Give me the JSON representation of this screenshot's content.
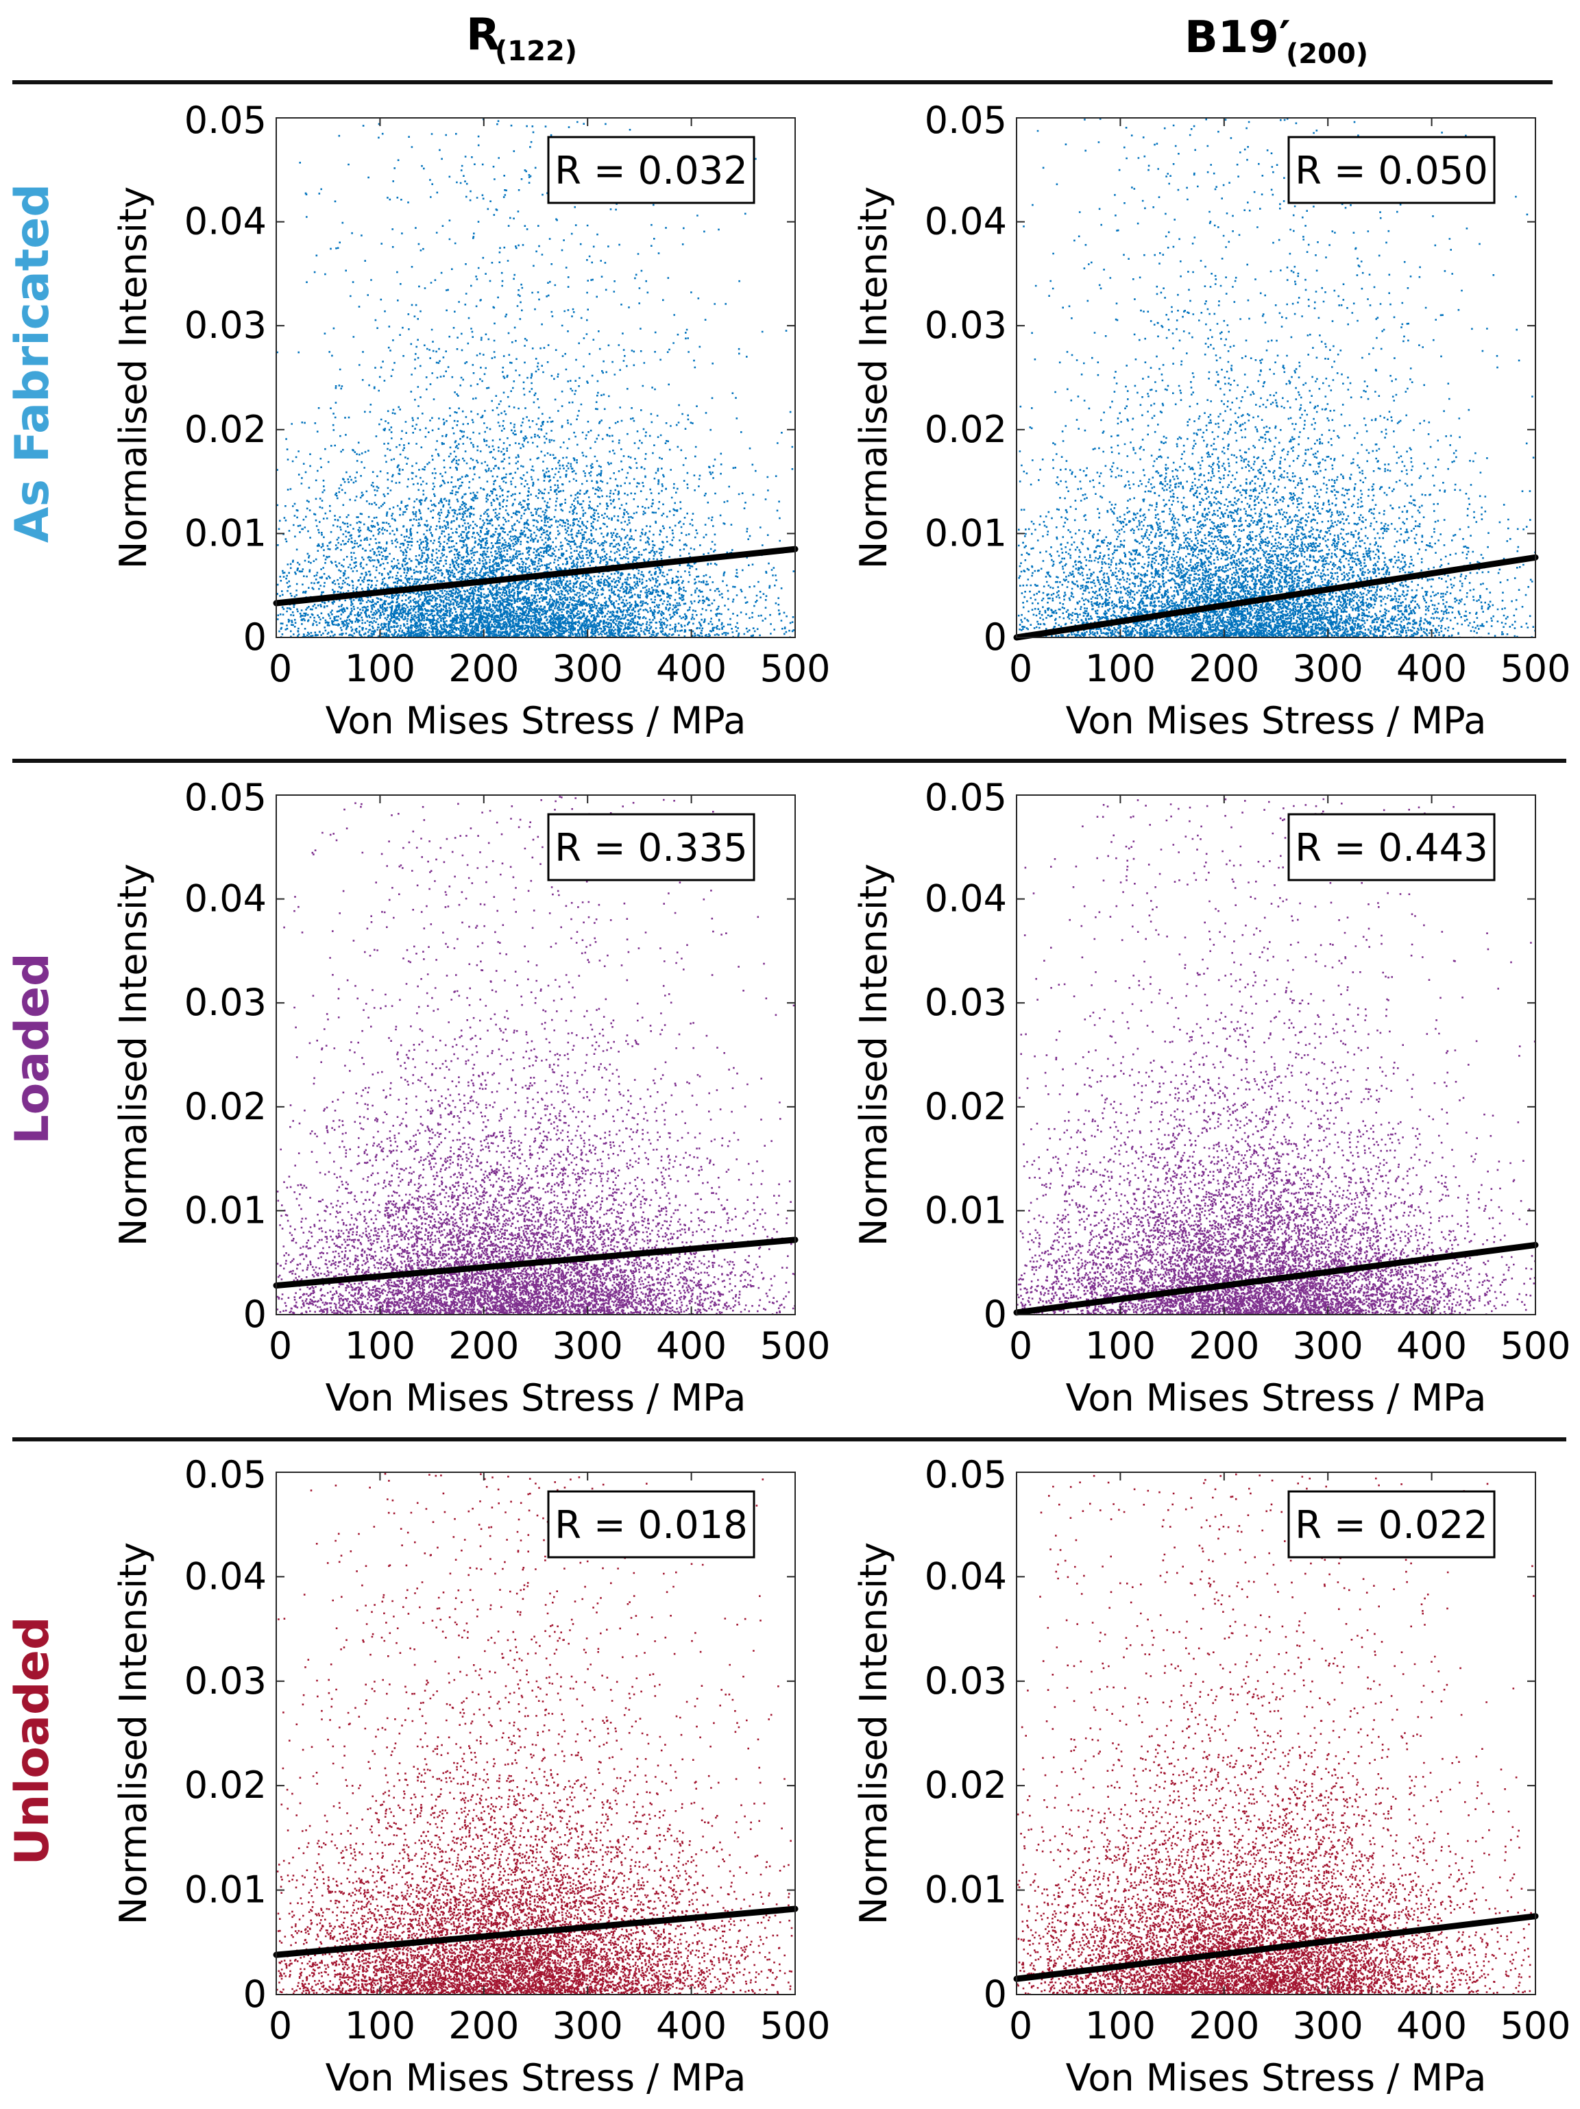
{
  "column_titles": [
    {
      "main": "R",
      "sub": "(122)"
    },
    {
      "main": "B19′",
      "sub": "(200)"
    }
  ],
  "rows": [
    {
      "label": "As Fabricated",
      "color": "#0072BD"
    },
    {
      "label": "Loaded",
      "color": "#7E2F8E"
    },
    {
      "label": "Unloaded",
      "color": "#A2142F"
    }
  ],
  "chart_data": [
    {
      "type": "scatter",
      "row": 0,
      "col": 0,
      "color": "#0072BD",
      "xlabel": "Von Mises Stress / MPa",
      "ylabel": "Normalised Intensity",
      "xlim": [
        0,
        500
      ],
      "ylim": [
        0,
        0.05
      ],
      "xticks": [
        0,
        100,
        200,
        300,
        400,
        500
      ],
      "yticks": [
        0,
        0.01,
        0.02,
        0.03,
        0.04,
        0.05
      ],
      "r_label": "R = 0.032",
      "fit_line": [
        [
          0,
          0.0033
        ],
        [
          500,
          0.0085
        ]
      ]
    },
    {
      "type": "scatter",
      "row": 0,
      "col": 1,
      "color": "#0072BD",
      "xlabel": "Von Mises Stress / MPa",
      "ylabel": "Normalised Intensity",
      "xlim": [
        0,
        500
      ],
      "ylim": [
        0,
        0.05
      ],
      "xticks": [
        0,
        100,
        200,
        300,
        400,
        500
      ],
      "yticks": [
        0,
        0.01,
        0.02,
        0.03,
        0.04,
        0.05
      ],
      "r_label": "R = 0.050",
      "fit_line": [
        [
          0,
          0.0
        ],
        [
          500,
          0.0077
        ]
      ]
    },
    {
      "type": "scatter",
      "row": 1,
      "col": 0,
      "color": "#7E2F8E",
      "xlabel": "Von Mises Stress / MPa",
      "ylabel": "Normalised Intensity",
      "xlim": [
        0,
        500
      ],
      "ylim": [
        0,
        0.05
      ],
      "xticks": [
        0,
        100,
        200,
        300,
        400,
        500
      ],
      "yticks": [
        0,
        0.01,
        0.02,
        0.03,
        0.04,
        0.05
      ],
      "r_label": "R = 0.335",
      "fit_line": [
        [
          0,
          0.0028
        ],
        [
          500,
          0.0072
        ]
      ]
    },
    {
      "type": "scatter",
      "row": 1,
      "col": 1,
      "color": "#7E2F8E",
      "xlabel": "Von Mises Stress / MPa",
      "ylabel": "Normalised Intensity",
      "xlim": [
        0,
        500
      ],
      "ylim": [
        0,
        0.05
      ],
      "xticks": [
        0,
        100,
        200,
        300,
        400,
        500
      ],
      "yticks": [
        0,
        0.01,
        0.02,
        0.03,
        0.04,
        0.05
      ],
      "r_label": "R = 0.443",
      "fit_line": [
        [
          0,
          0.0002
        ],
        [
          500,
          0.0067
        ]
      ]
    },
    {
      "type": "scatter",
      "row": 2,
      "col": 0,
      "color": "#A2142F",
      "xlabel": "Von Mises Stress / MPa",
      "ylabel": "Normalised Intensity",
      "xlim": [
        0,
        500
      ],
      "ylim": [
        0,
        0.05
      ],
      "xticks": [
        0,
        100,
        200,
        300,
        400,
        500
      ],
      "yticks": [
        0,
        0.01,
        0.02,
        0.03,
        0.04,
        0.05
      ],
      "r_label": "R = 0.018",
      "fit_line": [
        [
          0,
          0.0038
        ],
        [
          500,
          0.0082
        ]
      ]
    },
    {
      "type": "scatter",
      "row": 2,
      "col": 1,
      "color": "#A2142F",
      "xlabel": "Von Mises Stress / MPa",
      "ylabel": "Normalised Intensity",
      "xlim": [
        0,
        500
      ],
      "ylim": [
        0,
        0.05
      ],
      "xticks": [
        0,
        100,
        200,
        300,
        400,
        500
      ],
      "yticks": [
        0,
        0.01,
        0.02,
        0.03,
        0.04,
        0.05
      ],
      "r_label": "R = 0.022",
      "fit_line": [
        [
          0,
          0.0015
        ],
        [
          500,
          0.0075
        ]
      ]
    }
  ]
}
